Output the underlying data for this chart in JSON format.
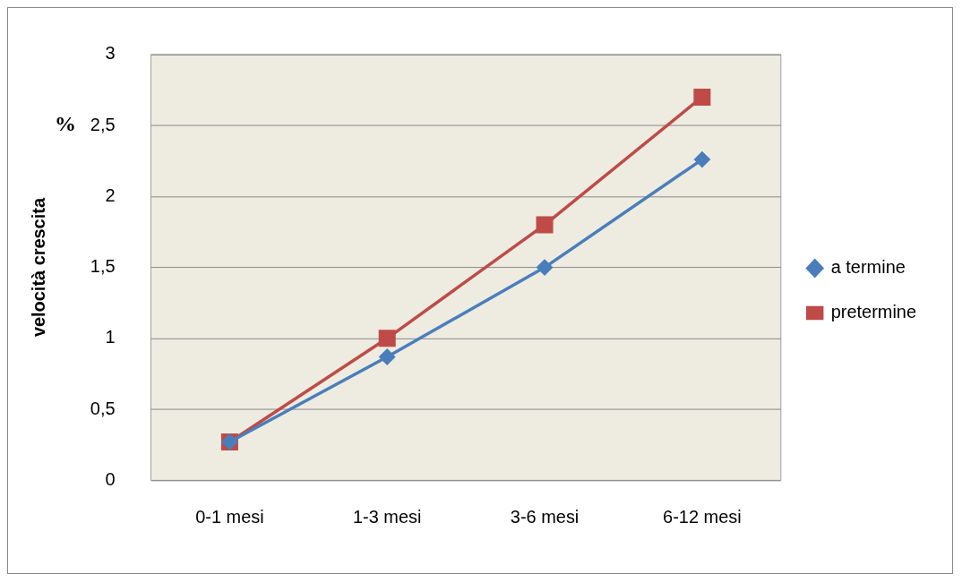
{
  "chart_data": {
    "type": "line",
    "ylabel": "velocità crescita",
    "annotations": [
      "%"
    ],
    "categories": [
      "0-1 mesi",
      "1-3 mesi",
      "3-6 mesi",
      "6-12 mesi"
    ],
    "series": [
      {
        "name": "a termine",
        "color": "#4a7ebb",
        "marker": "diamond",
        "values": [
          0.27,
          0.87,
          1.5,
          2.26
        ]
      },
      {
        "name": "pretermine",
        "color": "#be4b48",
        "marker": "square",
        "values": [
          0.27,
          1.0,
          1.8,
          2.7
        ]
      }
    ],
    "ylim": [
      0,
      3
    ],
    "yticks": [
      0,
      {
        "value": 0.5,
        "label": "0,5"
      },
      1,
      {
        "value": 1.5,
        "label": "1,5"
      },
      2,
      {
        "value": 2.5,
        "label": "2,5"
      },
      3
    ],
    "grid": "y",
    "legend": "right",
    "line_style": "solid"
  }
}
